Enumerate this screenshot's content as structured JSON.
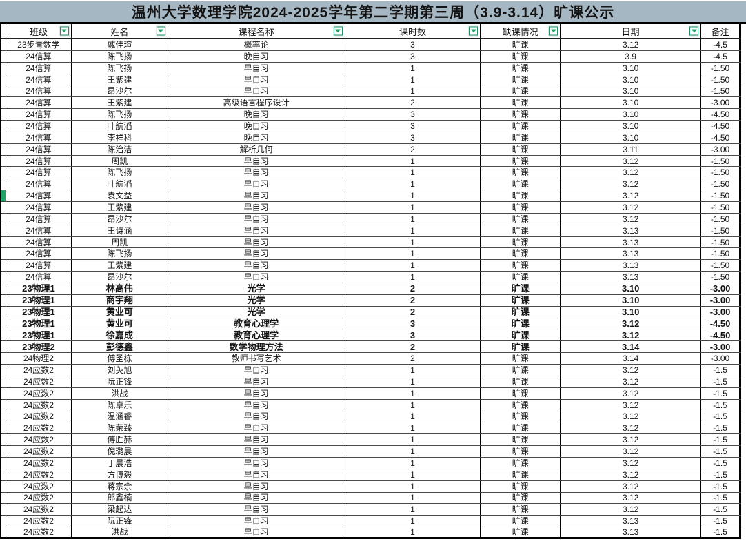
{
  "title": "温州大学数理学院2024-2025学年第二学期第三周（3.9-3.14）旷课公示",
  "header": {
    "columns": [
      "班级",
      "姓名",
      "课程名称",
      "课时数",
      "缺课情况",
      "日期",
      "备注"
    ],
    "filter_icon": "filter-dropdown-arrow",
    "filter_on_columns": [
      0,
      1,
      2,
      3,
      4,
      5
    ]
  },
  "colors": {
    "title_background": "#A6B7C4",
    "filter_green": "#21A366",
    "row_marker_green": "#21A366",
    "grid_line": "#4A4A4A",
    "heavy_line": "#000000"
  },
  "marker_row_index": 13,
  "bold_row_indices": [
    21,
    22,
    23,
    24,
    25,
    26
  ],
  "rows": [
    {
      "class": "23步青数学",
      "name": "戚佳瑄",
      "course": "概率论",
      "hours": "3",
      "status": "旷课",
      "date": "3.12",
      "remark": "-4.5"
    },
    {
      "class": "24信算",
      "name": "陈飞扬",
      "course": "晚自习",
      "hours": "3",
      "status": "旷课",
      "date": "3.9",
      "remark": "-4.5"
    },
    {
      "class": "24信算",
      "name": "陈飞扬",
      "course": "早自习",
      "hours": "1",
      "status": "旷课",
      "date": "3.10",
      "remark": "-1.50"
    },
    {
      "class": "24信算",
      "name": "王紫建",
      "course": "早自习",
      "hours": "1",
      "status": "旷课",
      "date": "3.10",
      "remark": "-1.50"
    },
    {
      "class": "24信算",
      "name": "昂沙尔",
      "course": "早自习",
      "hours": "1",
      "status": "旷课",
      "date": "3.10",
      "remark": "-1.50"
    },
    {
      "class": "24信算",
      "name": "王紫建",
      "course": "高级语言程序设计",
      "hours": "2",
      "status": "旷课",
      "date": "3.10",
      "remark": "-3.00"
    },
    {
      "class": "24信算",
      "name": "陈飞扬",
      "course": "晚自习",
      "hours": "3",
      "status": "旷课",
      "date": "3.10",
      "remark": "-4.50"
    },
    {
      "class": "24信算",
      "name": "叶航滔",
      "course": "晚自习",
      "hours": "3",
      "status": "旷课",
      "date": "3.10",
      "remark": "-4.50"
    },
    {
      "class": "24信算",
      "name": "李祥科",
      "course": "晚自习",
      "hours": "3",
      "status": "旷课",
      "date": "3.10",
      "remark": "-4.50"
    },
    {
      "class": "24信算",
      "name": "陈治洁",
      "course": "解析几何",
      "hours": "2",
      "status": "旷课",
      "date": "3.11",
      "remark": "-3.00"
    },
    {
      "class": "24信算",
      "name": "周凯",
      "course": "早自习",
      "hours": "1",
      "status": "旷课",
      "date": "3.12",
      "remark": "-1.50"
    },
    {
      "class": "24信算",
      "name": "陈飞扬",
      "course": "早自习",
      "hours": "1",
      "status": "旷课",
      "date": "3.12",
      "remark": "-1.50"
    },
    {
      "class": "24信算",
      "name": "叶航滔",
      "course": "早自习",
      "hours": "1",
      "status": "旷课",
      "date": "3.12",
      "remark": "-1.50"
    },
    {
      "class": "24信算",
      "name": "袁文益",
      "course": "早自习",
      "hours": "1",
      "status": "旷课",
      "date": "3.12",
      "remark": "-1.50"
    },
    {
      "class": "24信算",
      "name": "王紫建",
      "course": "早自习",
      "hours": "1",
      "status": "旷课",
      "date": "3.12",
      "remark": "-1.50"
    },
    {
      "class": "24信算",
      "name": "昂沙尔",
      "course": "早自习",
      "hours": "1",
      "status": "旷课",
      "date": "3.12",
      "remark": "-1.50"
    },
    {
      "class": "24信算",
      "name": "王诗涵",
      "course": "早自习",
      "hours": "1",
      "status": "旷课",
      "date": "3.13",
      "remark": "-1.50"
    },
    {
      "class": "24信算",
      "name": "周凯",
      "course": "早自习",
      "hours": "1",
      "status": "旷课",
      "date": "3.13",
      "remark": "-1.50"
    },
    {
      "class": "24信算",
      "name": "陈飞扬",
      "course": "早自习",
      "hours": "1",
      "status": "旷课",
      "date": "3.13",
      "remark": "-1.50"
    },
    {
      "class": "24信算",
      "name": "王紫建",
      "course": "早自习",
      "hours": "1",
      "status": "旷课",
      "date": "3.13",
      "remark": "-1.50"
    },
    {
      "class": "24信算",
      "name": "昂沙尔",
      "course": "早自习",
      "hours": "1",
      "status": "旷课",
      "date": "3.13",
      "remark": "-1.50"
    },
    {
      "class": "23物理1",
      "name": "林高伟",
      "course": "光学",
      "hours": "2",
      "status": "旷课",
      "date": "3.10",
      "remark": "-3.00"
    },
    {
      "class": "23物理1",
      "name": "商宇翔",
      "course": "光学",
      "hours": "2",
      "status": "旷课",
      "date": "3.10",
      "remark": "-3.00"
    },
    {
      "class": "23物理1",
      "name": "黄业可",
      "course": "光学",
      "hours": "2",
      "status": "旷课",
      "date": "3.10",
      "remark": "-3.00"
    },
    {
      "class": "23物理1",
      "name": "黄业可",
      "course": "教育心理学",
      "hours": "3",
      "status": "旷课",
      "date": "3.12",
      "remark": "-4.50"
    },
    {
      "class": "23物理1",
      "name": "徐嘉成",
      "course": "教育心理学",
      "hours": "3",
      "status": "旷课",
      "date": "3.12",
      "remark": "-4.50"
    },
    {
      "class": "23物理2",
      "name": "彭德鑫",
      "course": "数学物理方法",
      "hours": "2",
      "status": "旷课",
      "date": "3.14",
      "remark": "-3.00"
    },
    {
      "class": "24物理2",
      "name": "傅圣栋",
      "course": "教师书写艺术",
      "hours": "2",
      "status": "旷课",
      "date": "3.14",
      "remark": "-3.00"
    },
    {
      "class": "24应数2",
      "name": "刘英旭",
      "course": "早自习",
      "hours": "1",
      "status": "旷课",
      "date": "3.12",
      "remark": "-1.5"
    },
    {
      "class": "24应数2",
      "name": "阮正锋",
      "course": "早自习",
      "hours": "1",
      "status": "旷课",
      "date": "3.12",
      "remark": "-1.5"
    },
    {
      "class": "24应数2",
      "name": "洪战",
      "course": "早自习",
      "hours": "1",
      "status": "旷课",
      "date": "3.12",
      "remark": "-1.5"
    },
    {
      "class": "24应数2",
      "name": "陈卓乐",
      "course": "早自习",
      "hours": "1",
      "status": "旷课",
      "date": "3.12",
      "remark": "-1.5"
    },
    {
      "class": "24应数2",
      "name": "温涵睿",
      "course": "早自习",
      "hours": "1",
      "status": "旷课",
      "date": "3.12",
      "remark": "-1.5"
    },
    {
      "class": "24应数2",
      "name": "陈荣臻",
      "course": "早自习",
      "hours": "1",
      "status": "旷课",
      "date": "3.12",
      "remark": "-1.5"
    },
    {
      "class": "24应数2",
      "name": "傅胜赫",
      "course": "早自习",
      "hours": "1",
      "status": "旷课",
      "date": "3.12",
      "remark": "-1.5"
    },
    {
      "class": "24应数2",
      "name": "倪璐晨",
      "course": "早自习",
      "hours": "1",
      "status": "旷课",
      "date": "3.12",
      "remark": "-1.5"
    },
    {
      "class": "24应数2",
      "name": "丁晨浩",
      "course": "早自习",
      "hours": "1",
      "status": "旷课",
      "date": "3.12",
      "remark": "-1.5"
    },
    {
      "class": "24应数2",
      "name": "方博毅",
      "course": "早自习",
      "hours": "1",
      "status": "旷课",
      "date": "3.12",
      "remark": "-1.5"
    },
    {
      "class": "24应数2",
      "name": "蒋宗余",
      "course": "早自习",
      "hours": "1",
      "status": "旷课",
      "date": "3.12",
      "remark": "-1.5"
    },
    {
      "class": "24应数2",
      "name": "郎鑫楠",
      "course": "早自习",
      "hours": "1",
      "status": "旷课",
      "date": "3.12",
      "remark": "-1.5"
    },
    {
      "class": "24应数2",
      "name": "梁起达",
      "course": "早自习",
      "hours": "1",
      "status": "旷课",
      "date": "3.12",
      "remark": "-1.5"
    },
    {
      "class": "24应数2",
      "name": "阮正锋",
      "course": "早自习",
      "hours": "1",
      "status": "旷课",
      "date": "3.13",
      "remark": "-1.5"
    },
    {
      "class": "24应数2",
      "name": "洪战",
      "course": "早自习",
      "hours": "1",
      "status": "旷课",
      "date": "3.13",
      "remark": "-1.5"
    }
  ]
}
